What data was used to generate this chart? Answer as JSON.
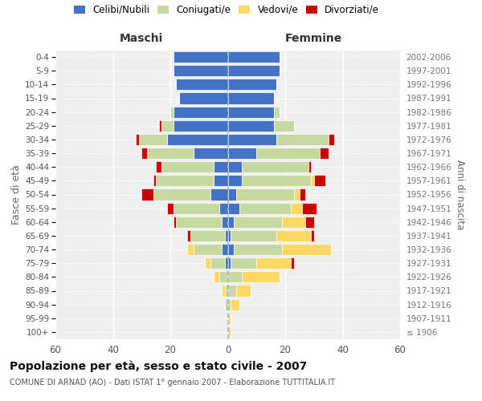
{
  "age_groups": [
    "100+",
    "95-99",
    "90-94",
    "85-89",
    "80-84",
    "75-79",
    "70-74",
    "65-69",
    "60-64",
    "55-59",
    "50-54",
    "45-49",
    "40-44",
    "35-39",
    "30-34",
    "25-29",
    "20-24",
    "15-19",
    "10-14",
    "5-9",
    "0-4"
  ],
  "birth_years": [
    "≤ 1906",
    "1907-1911",
    "1912-1916",
    "1917-1921",
    "1922-1926",
    "1927-1931",
    "1932-1936",
    "1937-1941",
    "1942-1946",
    "1947-1951",
    "1952-1956",
    "1957-1961",
    "1962-1966",
    "1967-1971",
    "1972-1976",
    "1977-1981",
    "1982-1986",
    "1987-1991",
    "1992-1996",
    "1997-2001",
    "2002-2006"
  ],
  "colors": {
    "celibi": "#4472c4",
    "coniugati": "#c5d9a0",
    "vedovi": "#ffd966",
    "divorziati": "#cc0000"
  },
  "maschi": {
    "celibi": [
      0,
      0,
      0,
      0,
      0,
      1,
      2,
      1,
      2,
      3,
      6,
      5,
      5,
      12,
      21,
      19,
      19,
      17,
      18,
      19,
      19
    ],
    "coniugati": [
      0,
      0,
      1,
      1,
      3,
      5,
      10,
      12,
      16,
      16,
      20,
      20,
      18,
      16,
      10,
      4,
      1,
      0,
      0,
      0,
      0
    ],
    "vedovi": [
      0,
      0,
      0,
      1,
      2,
      2,
      2,
      0,
      0,
      0,
      0,
      0,
      0,
      0,
      0,
      0,
      0,
      0,
      0,
      0,
      0
    ],
    "divorziati": [
      0,
      0,
      0,
      0,
      0,
      0,
      0,
      1,
      1,
      2,
      4,
      1,
      2,
      2,
      1,
      1,
      0,
      0,
      0,
      0,
      0
    ]
  },
  "femmine": {
    "celibi": [
      0,
      0,
      0,
      0,
      0,
      1,
      2,
      1,
      2,
      4,
      3,
      5,
      5,
      10,
      17,
      16,
      16,
      16,
      17,
      18,
      18
    ],
    "coniugati": [
      0,
      0,
      1,
      3,
      5,
      9,
      17,
      16,
      17,
      18,
      20,
      24,
      23,
      22,
      18,
      7,
      2,
      0,
      0,
      0,
      0
    ],
    "vedovi": [
      1,
      1,
      3,
      5,
      13,
      12,
      17,
      12,
      8,
      4,
      2,
      1,
      0,
      0,
      0,
      0,
      0,
      0,
      0,
      0,
      0
    ],
    "divorziati": [
      0,
      0,
      0,
      0,
      0,
      1,
      0,
      1,
      3,
      5,
      2,
      4,
      1,
      3,
      2,
      0,
      0,
      0,
      0,
      0,
      0
    ]
  },
  "xlim": 60,
  "title": "Popolazione per età, sesso e stato civile - 2007",
  "subtitle": "COMUNE DI ARNAD (AO) - Dati ISTAT 1° gennaio 2007 - Elaborazione TUTTITALIA.IT",
  "ylabel_left": "Fasce di età",
  "ylabel_right": "Anni di nascita",
  "label_maschi": "Maschi",
  "label_femmine": "Femmine",
  "legend_labels": [
    "Celibi/Nubili",
    "Coniugati/e",
    "Vedovi/e",
    "Divorziati/e"
  ],
  "bg_color": "#ffffff",
  "plot_bg": "#efefef"
}
